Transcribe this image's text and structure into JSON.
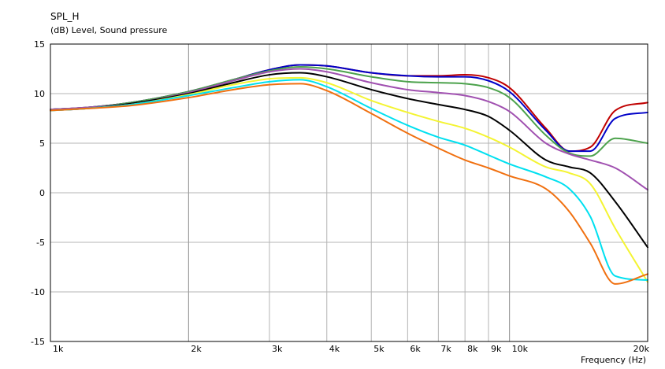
{
  "chart_data": {
    "type": "line",
    "title": "SPL_H",
    "subtitle": "(dB)  Level, Sound pressure",
    "xlabel": "Frequency  (Hz)",
    "ylabel": "",
    "x_scale": "log",
    "xlim": [
      1000,
      20000
    ],
    "ylim": [
      -15,
      15
    ],
    "grid": true,
    "yticks": [
      15,
      10,
      5,
      0,
      -5,
      -10,
      -15
    ],
    "ytick_labels": [
      "15",
      "10",
      "5",
      "0",
      "-5",
      "-10",
      "-15"
    ],
    "xticks": [
      1000,
      2000,
      3000,
      4000,
      5000,
      6000,
      7000,
      8000,
      9000,
      10000,
      20000
    ],
    "xtick_labels": [
      "1k",
      "2k",
      "3k",
      "4k",
      "5k",
      "6k",
      "7k",
      "8k",
      "9k",
      "10k",
      "20k"
    ],
    "x": [
      1000,
      1200,
      1500,
      2000,
      2500,
      3000,
      3500,
      4000,
      5000,
      6000,
      7000,
      8000,
      9000,
      10000,
      12000,
      13500,
      15000,
      17000,
      20000
    ],
    "series": [
      {
        "color": "#c00000",
        "values": [
          8.4,
          8.6,
          9.1,
          10.2,
          11.4,
          12.4,
          12.9,
          12.8,
          12.1,
          11.8,
          11.8,
          11.9,
          11.6,
          10.6,
          6.5,
          4.2,
          4.6,
          8.3,
          9.1
        ]
      },
      {
        "color": "#0000c8",
        "values": [
          8.4,
          8.6,
          9.1,
          10.2,
          11.4,
          12.4,
          12.9,
          12.8,
          12.1,
          11.8,
          11.7,
          11.7,
          11.3,
          10.2,
          6.3,
          4.2,
          4.2,
          7.5,
          8.1
        ]
      },
      {
        "color": "#4ca24c",
        "values": [
          8.4,
          8.6,
          9.1,
          10.2,
          11.4,
          12.3,
          12.7,
          12.5,
          11.7,
          11.2,
          11.1,
          11.0,
          10.6,
          9.6,
          5.8,
          4.0,
          3.7,
          5.5,
          5.0
        ]
      },
      {
        "color": "#a050b0",
        "values": [
          8.4,
          8.6,
          9.0,
          10.1,
          11.3,
          12.2,
          12.5,
          12.2,
          11.1,
          10.4,
          10.1,
          9.8,
          9.2,
          8.2,
          5.0,
          3.9,
          3.3,
          2.5,
          0.3
        ]
      },
      {
        "color": "#000000",
        "values": [
          8.3,
          8.5,
          9.0,
          10.0,
          11.1,
          11.9,
          12.1,
          11.7,
          10.4,
          9.5,
          8.9,
          8.4,
          7.7,
          6.3,
          3.3,
          2.6,
          2.0,
          -0.9,
          -5.5
        ]
      },
      {
        "color": "#f4f432",
        "values": [
          8.3,
          8.5,
          8.9,
          9.9,
          10.9,
          11.5,
          11.6,
          11.1,
          9.3,
          8.1,
          7.2,
          6.5,
          5.6,
          4.6,
          2.6,
          2.0,
          0.9,
          -3.6,
          -9.0
        ]
      },
      {
        "color": "#00e0f0",
        "values": [
          8.3,
          8.5,
          8.9,
          9.8,
          10.6,
          11.2,
          11.4,
          10.7,
          8.5,
          6.8,
          5.6,
          4.8,
          3.8,
          2.9,
          1.6,
          0.4,
          -2.4,
          -8.4,
          -8.8
        ]
      },
      {
        "color": "#f07010",
        "values": [
          8.3,
          8.5,
          8.8,
          9.6,
          10.4,
          10.9,
          11.0,
          10.3,
          8.0,
          6.0,
          4.5,
          3.3,
          2.5,
          1.7,
          0.4,
          -1.9,
          -5.1,
          -9.2,
          -8.2
        ]
      }
    ]
  }
}
